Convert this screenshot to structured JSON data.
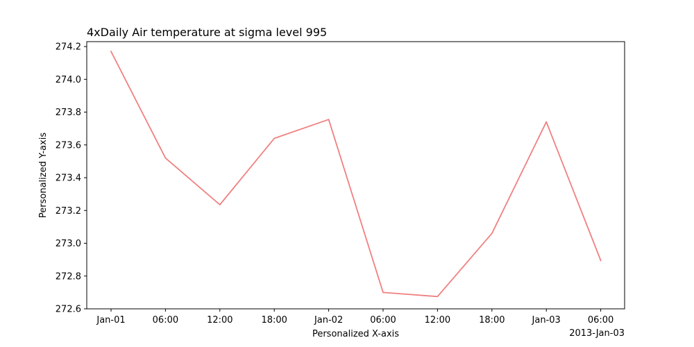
{
  "chart_data": {
    "type": "line",
    "title": "4xDaily Air temperature at sigma level 995",
    "xlabel": "Personalized X-axis",
    "ylabel": "Personalized Y-axis",
    "x_offset_label": "2013-Jan-03",
    "x_tick_labels": [
      "Jan-01",
      "06:00",
      "12:00",
      "18:00",
      "Jan-02",
      "06:00",
      "12:00",
      "18:00",
      "Jan-03",
      "06:00"
    ],
    "x": [
      "2013-01-01 00:00",
      "2013-01-01 06:00",
      "2013-01-01 12:00",
      "2013-01-01 18:00",
      "2013-01-02 00:00",
      "2013-01-02 06:00",
      "2013-01-02 12:00",
      "2013-01-02 18:00",
      "2013-01-03 00:00",
      "2013-01-03 06:00"
    ],
    "series": [
      {
        "color": "#f08080",
        "values": [
          274.17,
          273.52,
          273.235,
          273.64,
          273.755,
          272.7,
          272.675,
          273.06,
          273.74,
          272.895
        ]
      }
    ],
    "ylim": [
      272.6,
      274.23
    ],
    "y_ticks": [
      272.6,
      272.8,
      273.0,
      273.2,
      273.4,
      273.6,
      273.8,
      274.0,
      274.2
    ],
    "y_tick_labels": [
      "272.6",
      "272.8",
      "273.0",
      "273.2",
      "273.4",
      "273.6",
      "273.8",
      "274.0",
      "274.2"
    ],
    "grid": false,
    "legend": "none"
  }
}
